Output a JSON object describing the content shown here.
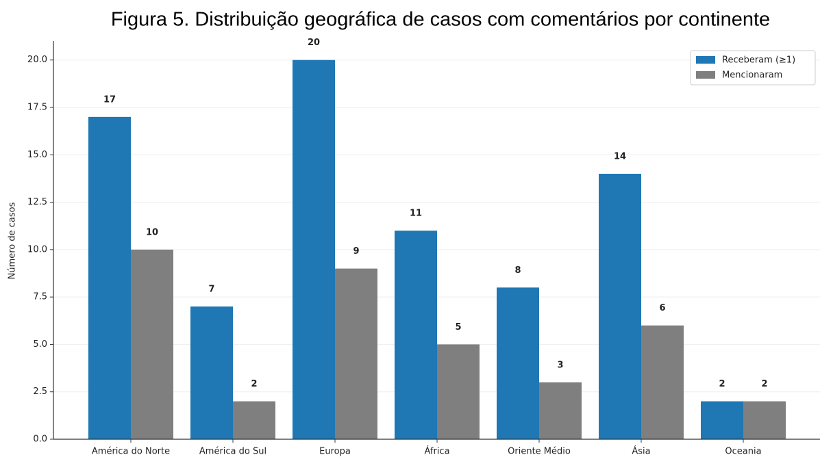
{
  "chart_data": {
    "type": "bar",
    "title": "Figura 5. Distribuição geográfica de casos com comentários por continente",
    "ylabel": "Número de casos",
    "categories": [
      "América do Norte",
      "América do Sul",
      "Europa",
      "África",
      "Oriente Médio",
      "Ásia",
      "Oceania"
    ],
    "series": [
      {
        "name": "Receberam (≥1)",
        "color": "#1f77b4",
        "values": [
          17,
          7,
          20,
          11,
          8,
          14,
          2
        ]
      },
      {
        "name": "Mencionaram",
        "color": "#7f7f7f",
        "values": [
          10,
          2,
          9,
          5,
          3,
          6,
          2
        ]
      }
    ],
    "ylim": [
      0,
      21
    ],
    "yticks": [
      {
        "value": 0,
        "label": "0.0"
      },
      {
        "value": 2.5,
        "label": "2.5"
      },
      {
        "value": 5,
        "label": "5.0"
      },
      {
        "value": 7.5,
        "label": "7.5"
      },
      {
        "value": 10,
        "label": "10.0"
      },
      {
        "value": 12.5,
        "label": "12.5"
      },
      {
        "value": 15,
        "label": "15.0"
      },
      {
        "value": 17.5,
        "label": "17.5"
      },
      {
        "value": 20,
        "label": "20.0"
      }
    ],
    "grid": true,
    "legend": "upper right"
  }
}
